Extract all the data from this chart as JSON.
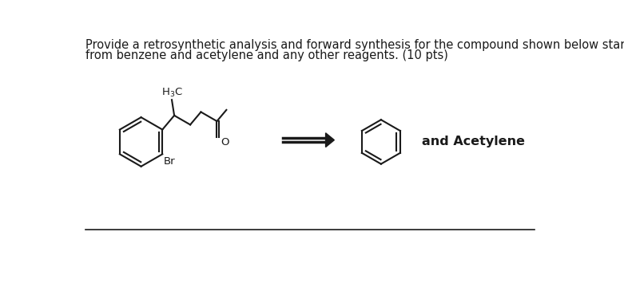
{
  "title_line1": "Provide a retrosynthetic analysis and forward synthesis for the compound shown below starting",
  "title_line2": "from benzene and acetylene and any other reagents. (10 pts)",
  "and_acetylene_text": "and Acetylene",
  "bg_color": "#ffffff",
  "text_color": "#1a1a1a",
  "line_color": "#1a1a1a",
  "title_fontsize": 10.5,
  "label_fontsize": 11.5,
  "mol_fontsize": 9.5
}
